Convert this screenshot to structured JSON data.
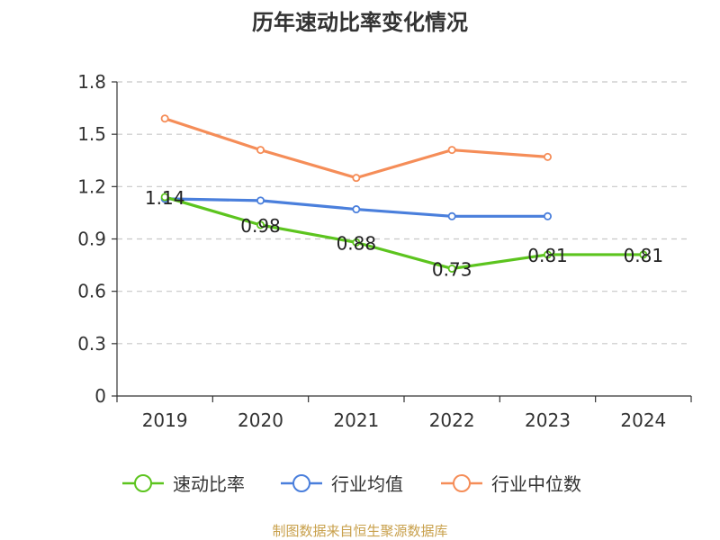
{
  "chart_data": {
    "type": "line",
    "title": "历年速动比率变化情况",
    "categories": [
      "2019",
      "2020",
      "2021",
      "2022",
      "2023",
      "2024"
    ],
    "ylim": [
      0,
      1.8
    ],
    "yticks": [
      "0",
      "0.3",
      "0.6",
      "0.9",
      "1.2",
      "1.5",
      "1.8"
    ],
    "grid": true,
    "legend_position": "bottom",
    "series": [
      {
        "name": "速动比率",
        "color": "#5cc41e",
        "values": [
          1.14,
          0.98,
          0.88,
          0.73,
          0.81,
          0.81
        ],
        "labels": [
          "1.14",
          "0.98",
          "0.88",
          "0.73",
          "0.81",
          "0.81"
        ]
      },
      {
        "name": "行业均值",
        "color": "#4a7fdc",
        "values": [
          1.13,
          1.12,
          1.07,
          1.03,
          1.03,
          null
        ]
      },
      {
        "name": "行业中位数",
        "color": "#f58d58",
        "values": [
          1.59,
          1.41,
          1.25,
          1.41,
          1.37,
          null
        ]
      }
    ]
  },
  "source": "制图数据来自恒生聚源数据库"
}
